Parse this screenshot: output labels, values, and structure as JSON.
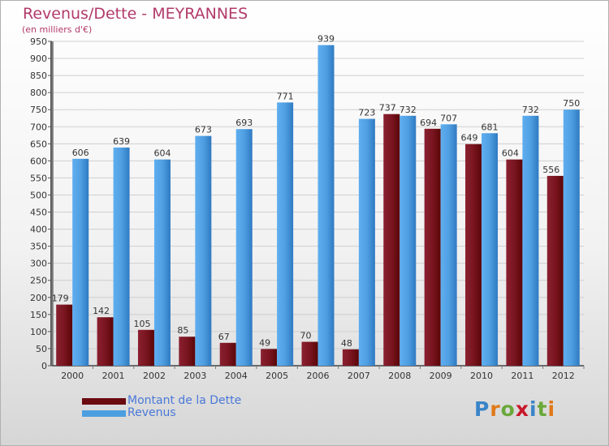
{
  "header": {
    "title": "Revenus/Dette - MEYRANNES",
    "subtitle": "(en milliers d'€)"
  },
  "legend": [
    {
      "label": "Montant de la Dette",
      "color": "#6b0a10"
    },
    {
      "label": "Revenus",
      "color": "#4d9fe0"
    }
  ],
  "logo": {
    "text": "Proxiti",
    "letters": [
      "P",
      "r",
      "o",
      "x",
      "i",
      "t",
      "i"
    ],
    "colors": [
      "#3a84c8",
      "#e0791a",
      "#6aa83a",
      "#c8182a",
      "#3a84c8",
      "#6aa83a",
      "#e0791a"
    ]
  },
  "chart_data": {
    "type": "bar",
    "categories": [
      "2000",
      "2001",
      "2002",
      "2003",
      "2004",
      "2005",
      "2006",
      "2007",
      "2008",
      "2009",
      "2010",
      "2011",
      "2012"
    ],
    "series": [
      {
        "name": "Montant de la Dette",
        "color": "#6b0a10",
        "values": [
          179,
          142,
          105,
          85,
          67,
          49,
          70,
          48,
          737,
          694,
          649,
          604,
          556
        ]
      },
      {
        "name": "Revenus",
        "color": "#4d9fe0",
        "values": [
          606,
          639,
          604,
          673,
          693,
          771,
          939,
          723,
          732,
          707,
          681,
          732,
          750
        ]
      }
    ],
    "ylim": [
      0,
      950
    ],
    "yticks": [
      0,
      50,
      100,
      150,
      200,
      250,
      300,
      350,
      400,
      450,
      500,
      550,
      600,
      650,
      700,
      750,
      800,
      850,
      900,
      950
    ],
    "grid": true,
    "legend_position": "bottom-left"
  }
}
